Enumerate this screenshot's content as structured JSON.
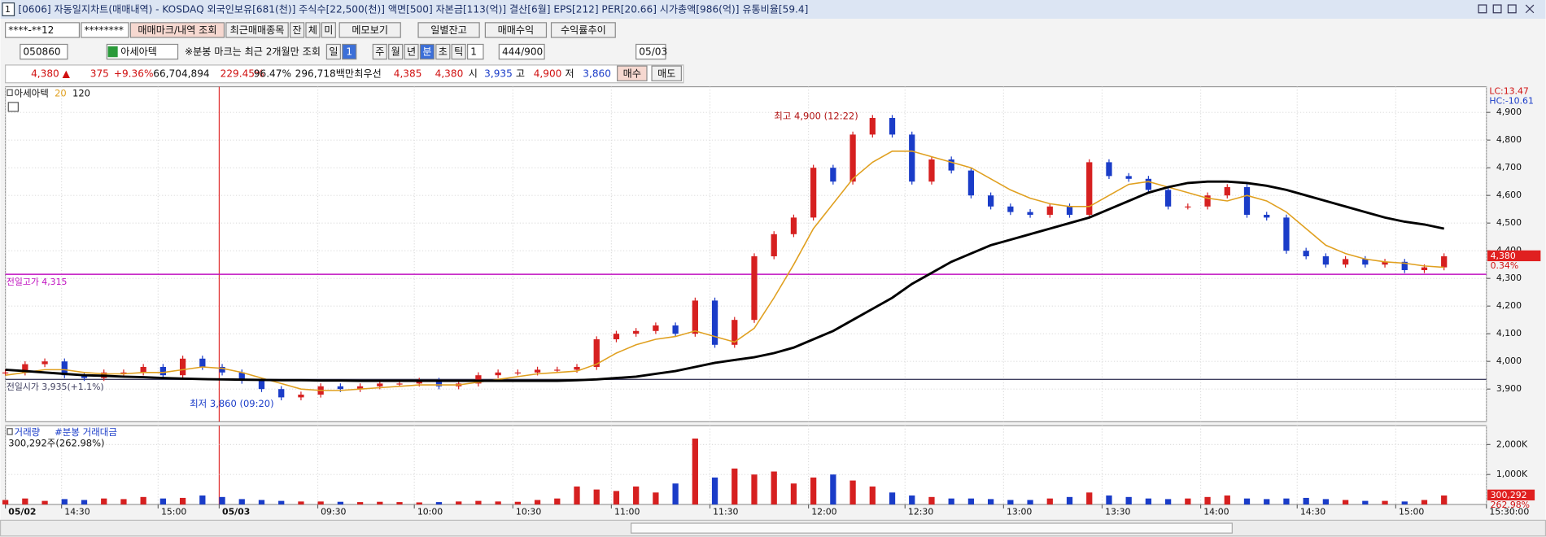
{
  "title_bar": "[0606] 자동일지차트(매매내역) - KOSDAQ 외국인보유[681(천)] 주식수[22,500(천)] 액면[500] 자본금[113(억)] 결산[6월] EPS[212] PER[20.66] 시가총액[986(억)] 유통비율[59.4]",
  "toolbar1": [
    "****-**12",
    "********",
    "매매마크/내역 조회",
    "최근매매종목",
    "잔",
    "체",
    "미",
    "메모보기",
    "일별잔고",
    "매매수익",
    "수익률추이"
  ],
  "toolbar2": [
    "050860",
    "아세아텍",
    "※분봉 마크는 최근 2개월만 조회",
    "일",
    "1",
    "주",
    "월",
    "년",
    "분",
    "초",
    "틱",
    "1",
    "444/900",
    "05/03"
  ],
  "quote_bar": [
    "4,380 ▲",
    "375",
    "+9.36%",
    "66,704,894",
    "229.45%",
    "96.47%",
    "296,718백만",
    "최우선",
    "4,385",
    "4,380",
    "시",
    "3,935",
    "고",
    "4,900",
    "저",
    "3,860",
    "매수",
    "매도"
  ],
  "chart_data": [
    {
      "type": "candlestick",
      "up_color": "#d62020",
      "down_color": "#1a3cc8",
      "series": [
        {
          "name": "아세아텍",
          "color": "#111111",
          "values": [
            3960,
            3990,
            4000,
            3950,
            3940,
            3960,
            3960,
            3980,
            3950,
            4010,
            3980,
            3960,
            3930,
            3900,
            3870,
            3880,
            3910,
            3900,
            3910,
            3920,
            3920,
            3930,
            3910,
            3920,
            3950,
            3960,
            3960,
            3970,
            3970,
            3980,
            4080,
            4100,
            4110,
            4130,
            4100,
            4220,
            4060,
            4150,
            4380,
            4460,
            4520,
            4700,
            4650,
            4820,
            4880,
            4820,
            4650,
            4730,
            4690,
            4600,
            4560,
            4540,
            4530,
            4560,
            4530,
            4720,
            4670,
            4660,
            4620,
            4560,
            4560,
            4600,
            4630,
            4530,
            4520,
            4400,
            4380,
            4350,
            4370,
            4350,
            4360,
            4330,
            4340,
            4380
          ]
        },
        {
          "name": "20",
          "color": "#e0a020",
          "values": [
            3950,
            3960,
            3970,
            3970,
            3960,
            3955,
            3955,
            3960,
            3960,
            3970,
            3980,
            3975,
            3960,
            3940,
            3920,
            3900,
            3895,
            3895,
            3900,
            3905,
            3910,
            3915,
            3915,
            3915,
            3925,
            3935,
            3945,
            3955,
            3960,
            3965,
            3990,
            4030,
            4060,
            4080,
            4090,
            4110,
            4090,
            4070,
            4120,
            4230,
            4350,
            4480,
            4570,
            4660,
            4720,
            4760,
            4760,
            4740,
            4720,
            4700,
            4660,
            4620,
            4590,
            4570,
            4560,
            4560,
            4600,
            4640,
            4650,
            4630,
            4610,
            4590,
            4580,
            4600,
            4580,
            4540,
            4480,
            4420,
            4390,
            4370,
            4360,
            4355,
            4345,
            4340
          ]
        },
        {
          "name": "120",
          "color": "#000000",
          "values": [
            3970,
            3965,
            3960,
            3955,
            3950,
            3948,
            3945,
            3943,
            3940,
            3938,
            3936,
            3935,
            3934,
            3933,
            3932,
            3932,
            3931,
            3931,
            3930,
            3930,
            3930,
            3930,
            3930,
            3930,
            3930,
            3930,
            3930,
            3930,
            3930,
            3932,
            3935,
            3940,
            3945,
            3955,
            3965,
            3980,
            3995,
            4005,
            4015,
            4030,
            4050,
            4080,
            4110,
            4150,
            4190,
            4230,
            4280,
            4320,
            4360,
            4390,
            4420,
            4440,
            4460,
            4480,
            4500,
            4520,
            4550,
            4580,
            4610,
            4630,
            4645,
            4650,
            4650,
            4645,
            4635,
            4620,
            4600,
            4580,
            4560,
            4540,
            4520,
            4505,
            4495,
            4480
          ]
        }
      ],
      "xlim": [
        0,
        75.15
      ],
      "ylim": [
        3782,
        4993
      ],
      "yticks": [
        {
          "value": 3900,
          "label": "3,900"
        },
        {
          "value": 4000,
          "label": "4,000"
        },
        {
          "value": 4100,
          "label": "4,100"
        },
        {
          "value": 4200,
          "label": "4,200"
        },
        {
          "value": 4300,
          "label": "4,300"
        },
        {
          "value": 4400,
          "label": "4,400"
        },
        {
          "value": 4500,
          "label": "4,500"
        },
        {
          "value": 4600,
          "label": "4,600"
        },
        {
          "value": 4700,
          "label": "4,700"
        },
        {
          "value": 4800,
          "label": "4,800"
        },
        {
          "value": 4900,
          "label": "4,900"
        }
      ],
      "grid": true,
      "annotations": [
        {
          "text": "최고 4,900 (12:22)",
          "value": 4900
        },
        {
          "text": "최저 3,860 (09:20)",
          "value": 3860
        }
      ],
      "reference_lines": [
        {
          "label": "전일고가 4,315",
          "value": 4315,
          "color": "#c010c0"
        },
        {
          "label": "전일시가 3,935(+1.1%)",
          "value": 3935,
          "color": "#404060"
        }
      ],
      "right_labels": {
        "lc": "LC:13.47",
        "hc": "HC:-10.61",
        "current": {
          "value": 4380,
          "label": "4,380"
        },
        "change": "0.34%"
      }
    },
    {
      "type": "bar",
      "subtitle": "#분봉 거래대금",
      "info": "300,292주(262.98%)",
      "series": [
        {
          "name": "거래량",
          "values": [
            150000,
            200000,
            120000,
            180000,
            150000,
            200000,
            180000,
            250000,
            200000,
            220000,
            300000,
            250000,
            180000,
            150000,
            120000,
            100000,
            100000,
            90000,
            80000,
            90000,
            80000,
            70000,
            80000,
            100000,
            120000,
            100000,
            90000,
            150000,
            200000,
            600000,
            500000,
            450000,
            600000,
            400000,
            700000,
            2200000,
            900000,
            1200000,
            1000000,
            1100000,
            700000,
            900000,
            1000000,
            800000,
            600000,
            400000,
            300000,
            250000,
            200000,
            200000,
            180000,
            150000,
            150000,
            200000,
            250000,
            400000,
            300000,
            250000,
            200000,
            180000,
            200000,
            250000,
            300000,
            200000,
            180000,
            200000,
            220000,
            180000,
            150000,
            120000,
            120000,
            100000,
            150000,
            300292
          ]
        }
      ],
      "xlim": [
        0,
        75.15
      ],
      "ylim": [
        0,
        2630000
      ],
      "yticks": [
        {
          "value": 1000000,
          "label": "1,000K"
        },
        {
          "value": 2000000,
          "label": "2,000K"
        }
      ],
      "xticks": [
        {
          "value": 0,
          "label": "05/02"
        },
        {
          "value": 2.85,
          "label": "14:30"
        },
        {
          "value": 7.75,
          "label": "15:00"
        },
        {
          "value": 10.85,
          "label": "05/03"
        },
        {
          "value": 15.85,
          "label": "09:30"
        },
        {
          "value": 20.75,
          "label": "10:00"
        },
        {
          "value": 25.75,
          "label": "10:30"
        },
        {
          "value": 30.75,
          "label": "11:00"
        },
        {
          "value": 35.75,
          "label": "11:30"
        },
        {
          "value": 40.75,
          "label": "12:00"
        },
        {
          "value": 45.65,
          "label": "12:30"
        },
        {
          "value": 50.65,
          "label": "13:00"
        },
        {
          "value": 55.65,
          "label": "13:30"
        },
        {
          "value": 60.65,
          "label": "14:00"
        },
        {
          "value": 65.55,
          "label": "14:30"
        },
        {
          "value": 70.55,
          "label": "15:00"
        },
        {
          "value": 75.15,
          "label": "15:30:00"
        }
      ],
      "current": {
        "value": 300292,
        "label": "300,292"
      },
      "change": "262.98%"
    }
  ]
}
